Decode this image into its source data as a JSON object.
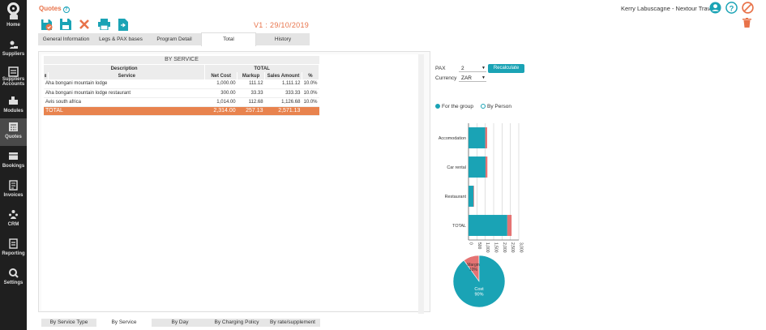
{
  "sidebar": {
    "items": [
      {
        "label": "Home",
        "icon": "home-icon"
      },
      {
        "label": "Suppliers",
        "icon": "supplier-icon"
      },
      {
        "label": "Suppliers Accounts",
        "icon": "accounts-icon"
      },
      {
        "label": "Modules",
        "icon": "modules-icon"
      },
      {
        "label": "Quotes",
        "icon": "calculator-icon"
      },
      {
        "label": "Bookings",
        "icon": "bookings-icon"
      },
      {
        "label": "Invoices",
        "icon": "invoices-icon"
      },
      {
        "label": "CRM",
        "icon": "crm-icon"
      },
      {
        "label": "Reporting",
        "icon": "reporting-icon"
      },
      {
        "label": "Settings",
        "icon": "settings-icon"
      }
    ]
  },
  "header": {
    "title": "Quotes",
    "user": "Kerry Labuscagne - Nextour Travel",
    "version": "V1 : 29/10/2019",
    "accent": "#e8734a",
    "teal": "#1aa3b5"
  },
  "tabs": [
    {
      "label": "General Information"
    },
    {
      "label": "Legs & PAX bases"
    },
    {
      "label": "Program Detail"
    },
    {
      "label": "Total",
      "active": true
    },
    {
      "label": "History"
    }
  ],
  "table": {
    "section_title": "BY SERVICE",
    "group_headers": {
      "description": "Description",
      "total": "TOTAL"
    },
    "columns": [
      "Service",
      "Net Cost",
      "Markup",
      "Sales Amount",
      "%"
    ],
    "rows": [
      [
        "Aha bongani mountain lodge",
        "1,000.00",
        "111.12",
        "1,111.12",
        "10.0%"
      ],
      [
        "Aha bongani mountain lodge restaurant",
        "300.00",
        "33.33",
        "333.33",
        "10.0%"
      ],
      [
        "Avis south africa",
        "1,014.00",
        "112.68",
        "1,126.68",
        "10.0%"
      ]
    ],
    "total": [
      "TOTAL",
      "2,314.00",
      "257.13",
      "2,571.13",
      ""
    ]
  },
  "bottom_tabs": [
    {
      "label": "By Service Type"
    },
    {
      "label": "By Service",
      "active": true
    },
    {
      "label": "By Day"
    },
    {
      "label": "By Charging Policy"
    },
    {
      "label": "By rate/supplement"
    }
  ],
  "controls": {
    "pax_label": "PAX",
    "pax_value": "2",
    "currency_label": "Currency",
    "currency_value": "ZAR",
    "recalc_label": "Recalculate",
    "radio_group": "For the group",
    "radio_person": "By Person"
  },
  "chart_data": [
    {
      "type": "bar",
      "orientation": "horizontal",
      "stacked": true,
      "categories": [
        "Accomodation",
        "Car rental",
        "Restaurant",
        "TOTAL"
      ],
      "series": [
        {
          "values": [
            1000,
            1014,
            300,
            2314
          ],
          "color": "#1aa3b5"
        },
        {
          "values": [
            111.12,
            112.68,
            33.33,
            257.13
          ],
          "color": "#e57373"
        }
      ],
      "xticks": [
        "0",
        "500",
        "1,000",
        "1,500",
        "2,000",
        "2,500",
        "3,000"
      ],
      "xlim": [
        0,
        3000
      ],
      "grid": true
    },
    {
      "type": "pie",
      "slices": [
        {
          "label": "Cost",
          "pct": "90%",
          "value": 90,
          "color": "#1aa3b5"
        },
        {
          "label": "Margin",
          "pct": "10%",
          "value": 10,
          "color": "#e57373"
        }
      ]
    }
  ]
}
